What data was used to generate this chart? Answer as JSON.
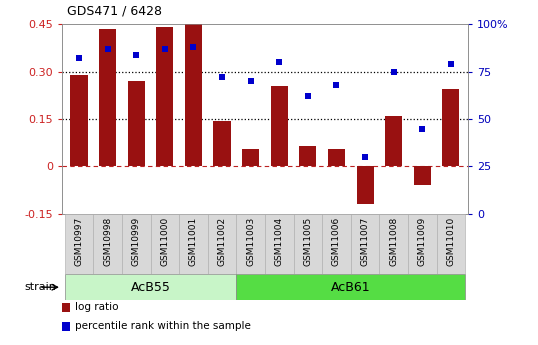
{
  "title": "GDS471 / 6428",
  "samples": [
    "GSM10997",
    "GSM10998",
    "GSM10999",
    "GSM11000",
    "GSM11001",
    "GSM11002",
    "GSM11003",
    "GSM11004",
    "GSM11005",
    "GSM11006",
    "GSM11007",
    "GSM11008",
    "GSM11009",
    "GSM11010"
  ],
  "log_ratio": [
    0.29,
    0.435,
    0.27,
    0.44,
    0.455,
    0.145,
    0.055,
    0.255,
    0.065,
    0.055,
    -0.12,
    0.16,
    -0.06,
    0.245
  ],
  "percentile": [
    82,
    87,
    84,
    87,
    88,
    72,
    70,
    80,
    62,
    68,
    30,
    75,
    45,
    79
  ],
  "strains": [
    {
      "label": "AcB55",
      "start": 0,
      "end": 5,
      "color": "#c8f0c8"
    },
    {
      "label": "AcB61",
      "start": 6,
      "end": 13,
      "color": "#66dd55"
    }
  ],
  "bar_color": "#991111",
  "dot_color": "#0000CC",
  "ylim_left": [
    -0.15,
    0.45
  ],
  "ylim_right": [
    0,
    100
  ],
  "yticks_left": [
    -0.15,
    0,
    0.15,
    0.3,
    0.45
  ],
  "yticks_right": [
    0,
    25,
    50,
    75,
    100
  ],
  "hlines": [
    0.15,
    0.3
  ],
  "zero_line_color": "#BB2222",
  "hline_color": "#000000",
  "bg_color": "#ffffff",
  "strain_label": "strain",
  "legend_items": [
    {
      "label": "log ratio",
      "color": "#991111"
    },
    {
      "label": "percentile rank within the sample",
      "color": "#0000CC"
    }
  ],
  "tick_bg": "#d0d0d0",
  "left_tick_color": "#CC2222",
  "right_tick_color": "#0000BB"
}
